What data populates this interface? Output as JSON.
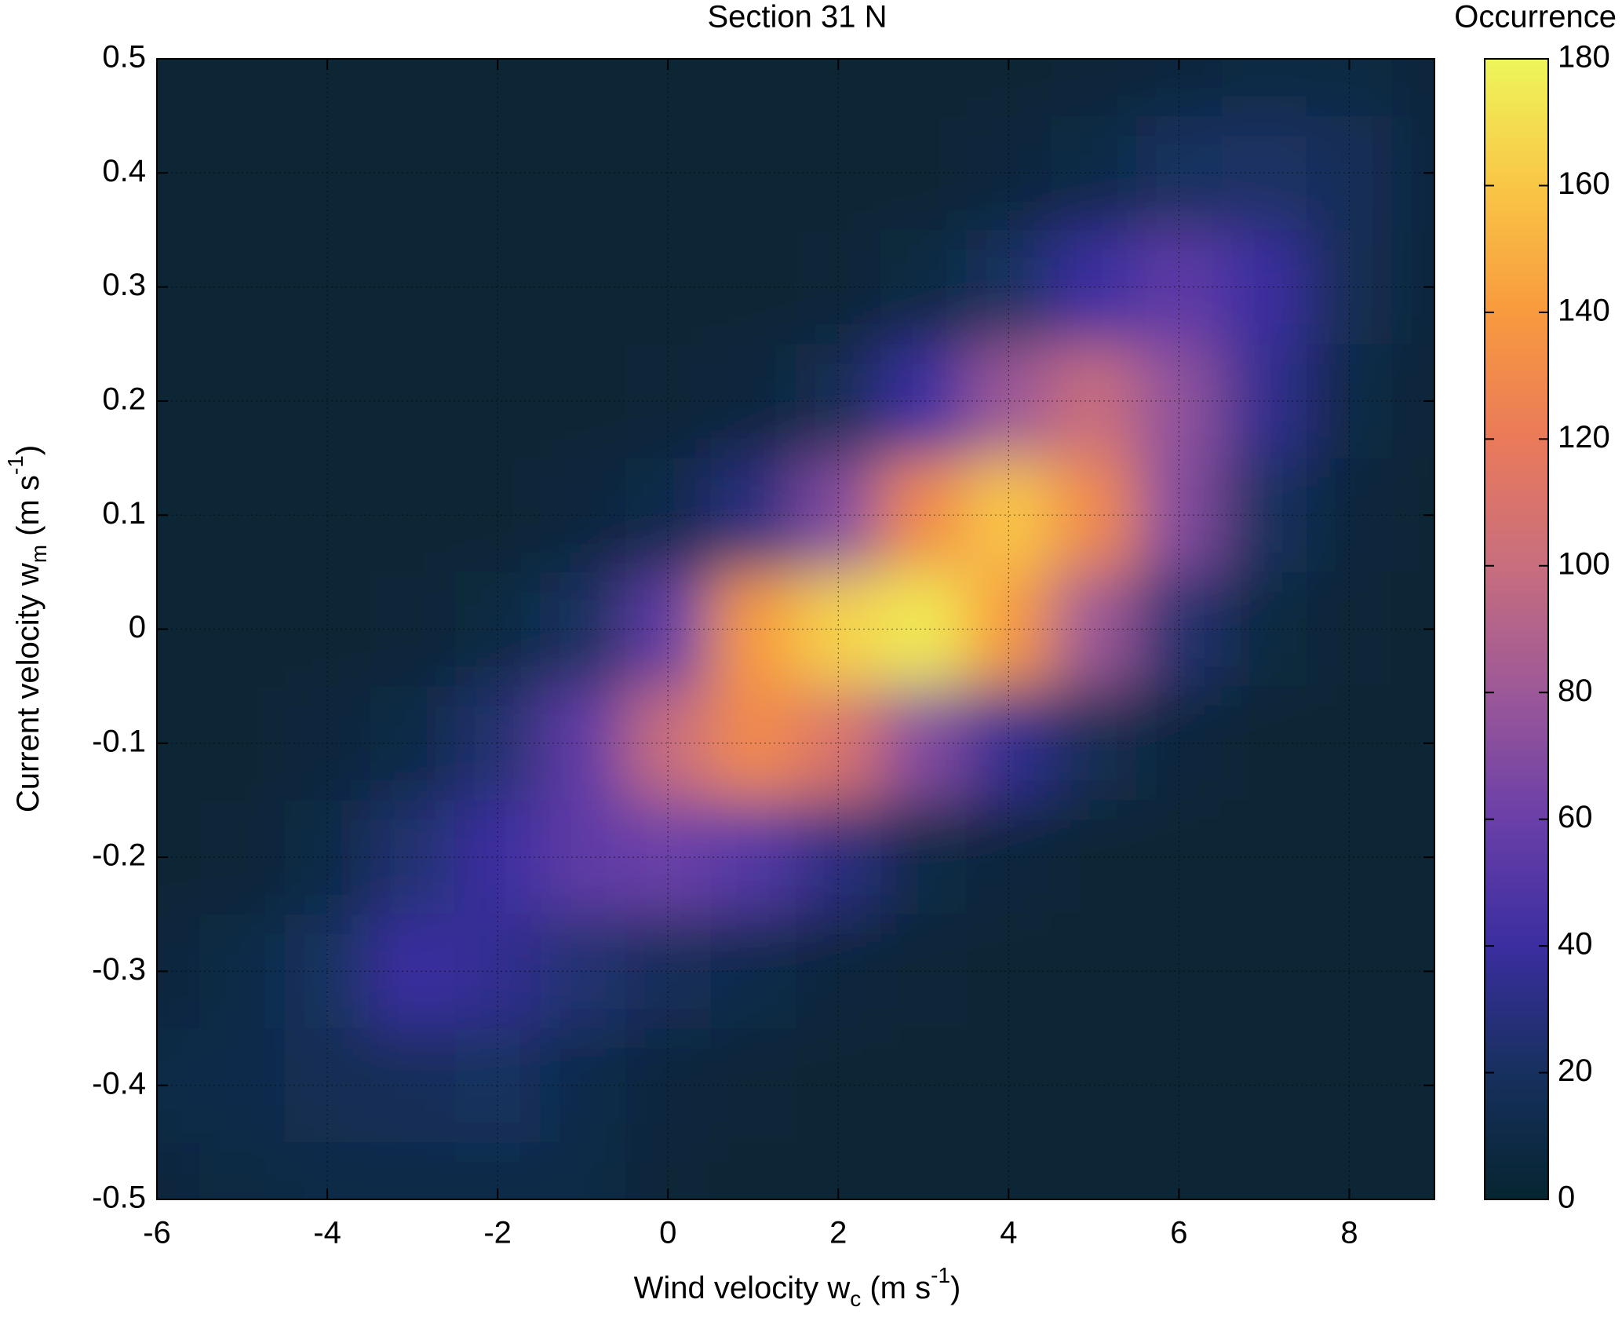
{
  "chart_data": {
    "type": "contour",
    "title": "Section 31 N",
    "xlabel": [
      "Wind velocity w",
      "c",
      " (m s",
      "-1",
      ")"
    ],
    "ylabel": [
      "Current velocity w",
      "m",
      " (m s",
      "-1",
      ")"
    ],
    "colorbar_title": "Occurrence",
    "x": [
      -6,
      -5,
      -4,
      -3,
      -2,
      -1,
      0,
      1,
      2,
      3,
      4,
      5,
      6,
      7,
      8,
      9
    ],
    "y": [
      -0.5,
      -0.4,
      -0.3,
      -0.2,
      -0.1,
      0,
      0.1,
      0.2,
      0.3,
      0.4,
      0.5
    ],
    "z": [
      [
        5,
        8,
        10,
        10,
        10,
        10,
        3,
        2,
        2,
        2,
        2,
        2,
        2,
        2,
        2,
        2
      ],
      [
        10,
        12,
        15,
        18,
        20,
        12,
        6,
        3,
        2,
        2,
        2,
        2,
        2,
        2,
        2,
        2
      ],
      [
        5,
        10,
        20,
        40,
        35,
        25,
        18,
        12,
        5,
        3,
        2,
        2,
        2,
        2,
        2,
        2
      ],
      [
        2,
        3,
        10,
        25,
        40,
        55,
        60,
        50,
        30,
        10,
        5,
        2,
        2,
        2,
        2,
        2
      ],
      [
        2,
        2,
        5,
        10,
        25,
        55,
        100,
        130,
        110,
        70,
        35,
        15,
        5,
        2,
        2,
        2
      ],
      [
        2,
        2,
        2,
        3,
        8,
        20,
        55,
        140,
        165,
        175,
        140,
        80,
        25,
        8,
        3,
        2
      ],
      [
        2,
        2,
        2,
        2,
        2,
        5,
        12,
        30,
        70,
        130,
        160,
        130,
        70,
        20,
        5,
        2
      ],
      [
        2,
        2,
        2,
        2,
        2,
        2,
        3,
        5,
        15,
        40,
        80,
        100,
        75,
        35,
        10,
        3
      ],
      [
        2,
        2,
        2,
        2,
        2,
        2,
        2,
        2,
        3,
        8,
        20,
        40,
        55,
        40,
        15,
        5
      ],
      [
        2,
        2,
        2,
        2,
        2,
        2,
        2,
        2,
        2,
        2,
        5,
        10,
        20,
        22,
        18,
        5
      ],
      [
        2,
        2,
        2,
        2,
        2,
        2,
        2,
        2,
        2,
        2,
        2,
        3,
        5,
        8,
        8,
        5
      ]
    ],
    "xlim": [
      -6,
      9
    ],
    "xticks": [
      -6,
      -4,
      -2,
      0,
      2,
      4,
      6,
      8
    ],
    "ylim": [
      -0.5,
      0.5
    ],
    "yticks": [
      -0.5,
      -0.4,
      -0.3,
      -0.2,
      -0.1,
      0,
      0.1,
      0.2,
      0.3,
      0.4,
      0.5
    ],
    "clim": [
      0,
      180
    ],
    "cticks": [
      0,
      20,
      40,
      60,
      80,
      100,
      120,
      140,
      160,
      180
    ],
    "colormap": [
      "#062530",
      "#17305e",
      "#3b2ea0",
      "#6a3fa8",
      "#9c5898",
      "#c86e7e",
      "#ea7a5a",
      "#f89a3e",
      "#f9c646",
      "#eef65a"
    ],
    "grid": true
  }
}
